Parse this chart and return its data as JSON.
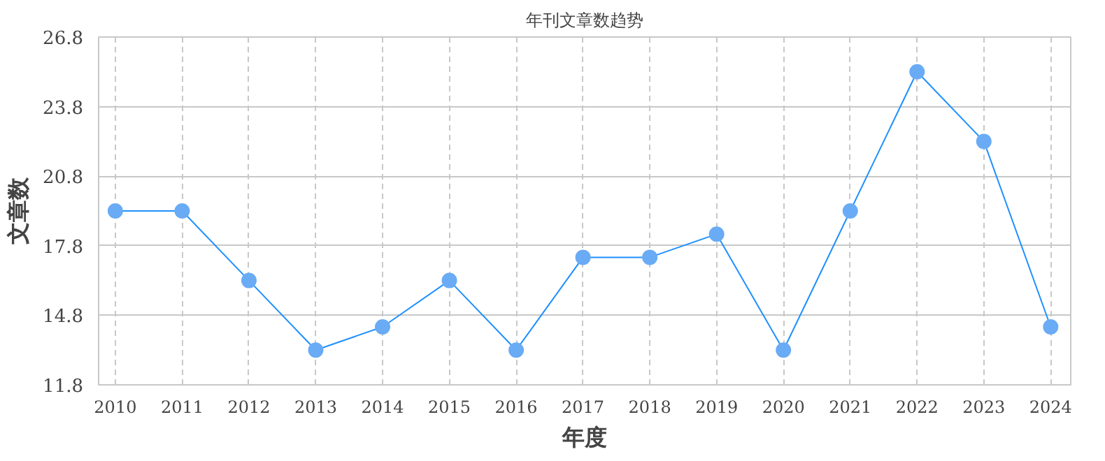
{
  "chart_data": {
    "type": "line",
    "title": "年刊文章数趋势",
    "xlabel": "年度",
    "ylabel": "文章数",
    "categories": [
      "2010",
      "2011",
      "2012",
      "2013",
      "2014",
      "2015",
      "2016",
      "2017",
      "2018",
      "2019",
      "2020",
      "2021",
      "2022",
      "2023",
      "2024"
    ],
    "series": [
      {
        "color": "#1e90ff",
        "values": [
          19.3,
          19.3,
          16.3,
          13.3,
          14.3,
          16.3,
          13.3,
          17.3,
          17.3,
          18.3,
          13.3,
          19.3,
          25.3,
          22.3,
          14.3
        ]
      }
    ],
    "ylim": [
      11.8,
      26.8
    ],
    "yticks": [
      11.8,
      14.8,
      17.8,
      20.8,
      23.8,
      26.8
    ],
    "grid": true,
    "marker": "circle",
    "line_style": "solid"
  }
}
